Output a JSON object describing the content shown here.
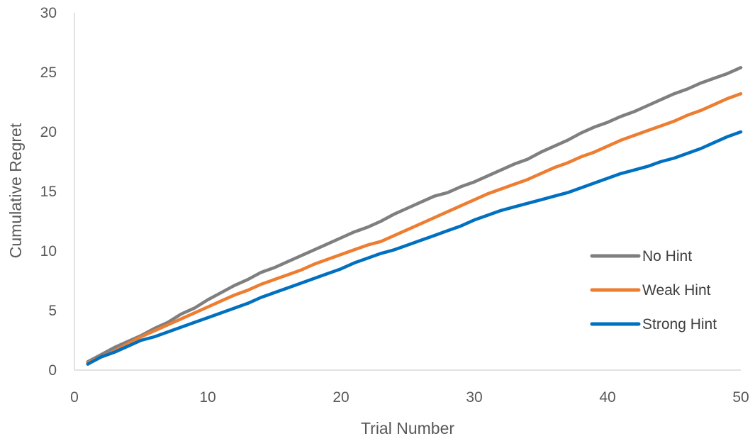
{
  "chart_data": {
    "type": "line",
    "title": "",
    "xlabel": "Trial Number",
    "ylabel": "Cumulative Regret",
    "xlim": [
      0,
      50
    ],
    "ylim": [
      0,
      30
    ],
    "xticks": [
      0,
      10,
      20,
      30,
      40,
      50
    ],
    "yticks": [
      0,
      5,
      10,
      15,
      20,
      25,
      30
    ],
    "grid": false,
    "legend_position": "right",
    "series": [
      {
        "name": "No Hint",
        "color": "#7f7f7f",
        "x": [
          1,
          2,
          3,
          4,
          5,
          6,
          7,
          8,
          9,
          10,
          11,
          12,
          13,
          14,
          15,
          16,
          17,
          18,
          19,
          20,
          21,
          22,
          23,
          24,
          25,
          26,
          27,
          28,
          29,
          30,
          31,
          32,
          33,
          34,
          35,
          36,
          37,
          38,
          39,
          40,
          41,
          42,
          43,
          44,
          45,
          46,
          47,
          48,
          49,
          50
        ],
        "y": [
          0.7,
          1.3,
          1.9,
          2.4,
          2.9,
          3.5,
          4.0,
          4.7,
          5.2,
          5.9,
          6.5,
          7.1,
          7.6,
          8.2,
          8.6,
          9.1,
          9.6,
          10.1,
          10.6,
          11.1,
          11.6,
          12.0,
          12.5,
          13.1,
          13.6,
          14.1,
          14.6,
          14.9,
          15.4,
          15.8,
          16.3,
          16.8,
          17.3,
          17.7,
          18.3,
          18.8,
          19.3,
          19.9,
          20.4,
          20.8,
          21.3,
          21.7,
          22.2,
          22.7,
          23.2,
          23.6,
          24.1,
          24.5,
          24.9,
          25.4
        ]
      },
      {
        "name": "Weak Hint",
        "color": "#ed7d31",
        "x": [
          1,
          2,
          3,
          4,
          5,
          6,
          7,
          8,
          9,
          10,
          11,
          12,
          13,
          14,
          15,
          16,
          17,
          18,
          19,
          20,
          21,
          22,
          23,
          24,
          25,
          26,
          27,
          28,
          29,
          30,
          31,
          32,
          33,
          34,
          35,
          36,
          37,
          38,
          39,
          40,
          41,
          42,
          43,
          44,
          45,
          46,
          47,
          48,
          49,
          50
        ],
        "y": [
          0.6,
          1.1,
          1.6,
          2.2,
          2.8,
          3.3,
          3.8,
          4.3,
          4.8,
          5.3,
          5.8,
          6.3,
          6.7,
          7.2,
          7.6,
          8.0,
          8.4,
          8.9,
          9.3,
          9.7,
          10.1,
          10.5,
          10.8,
          11.3,
          11.8,
          12.3,
          12.8,
          13.3,
          13.8,
          14.3,
          14.8,
          15.2,
          15.6,
          16.0,
          16.5,
          17.0,
          17.4,
          17.9,
          18.3,
          18.8,
          19.3,
          19.7,
          20.1,
          20.5,
          20.9,
          21.4,
          21.8,
          22.3,
          22.8,
          23.2
        ]
      },
      {
        "name": "Strong Hint",
        "color": "#0070c0",
        "x": [
          1,
          2,
          3,
          4,
          5,
          6,
          7,
          8,
          9,
          10,
          11,
          12,
          13,
          14,
          15,
          16,
          17,
          18,
          19,
          20,
          21,
          22,
          23,
          24,
          25,
          26,
          27,
          28,
          29,
          30,
          31,
          32,
          33,
          34,
          35,
          36,
          37,
          38,
          39,
          40,
          41,
          42,
          43,
          44,
          45,
          46,
          47,
          48,
          49,
          50
        ],
        "y": [
          0.5,
          1.1,
          1.5,
          2.0,
          2.5,
          2.8,
          3.2,
          3.6,
          4.0,
          4.4,
          4.8,
          5.2,
          5.6,
          6.1,
          6.5,
          6.9,
          7.3,
          7.7,
          8.1,
          8.5,
          9.0,
          9.4,
          9.8,
          10.1,
          10.5,
          10.9,
          11.3,
          11.7,
          12.1,
          12.6,
          13.0,
          13.4,
          13.7,
          14.0,
          14.3,
          14.6,
          14.9,
          15.3,
          15.7,
          16.1,
          16.5,
          16.8,
          17.1,
          17.5,
          17.8,
          18.2,
          18.6,
          19.1,
          19.6,
          20.0
        ]
      }
    ]
  }
}
